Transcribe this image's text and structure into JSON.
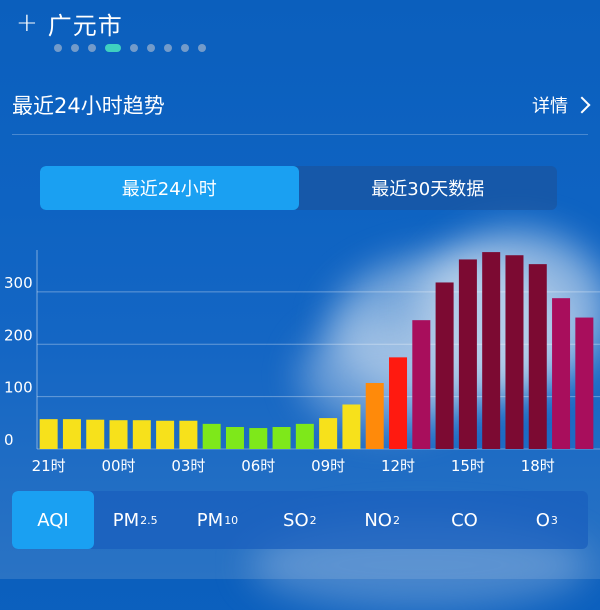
{
  "header": {
    "city": "广元市"
  },
  "pager": {
    "count": 9,
    "active_index": 3
  },
  "section": {
    "title": "最近24小时趋势",
    "detail_label": "详情"
  },
  "range_toggle": {
    "options": [
      "最近24小时",
      "最近30天数据"
    ],
    "active_index": 0
  },
  "pollutant_tabs": {
    "active_index": 0,
    "items": [
      {
        "main": "AQI",
        "sub": ""
      },
      {
        "main": "PM",
        "sub": "2.5"
      },
      {
        "main": "PM",
        "sub": "10"
      },
      {
        "main": "SO",
        "sub": "2"
      },
      {
        "main": "NO",
        "sub": "2"
      },
      {
        "main": "CO",
        "sub": ""
      },
      {
        "main": "O",
        "sub": "3"
      }
    ]
  },
  "chart_data": {
    "type": "bar",
    "ylim": [
      0,
      380
    ],
    "y_ticks": [
      0,
      100,
      200,
      300
    ],
    "x_tick_labels": [
      "21时",
      "00时",
      "03时",
      "06时",
      "09时",
      "12时",
      "15时",
      "18时"
    ],
    "x_tick_indices": [
      0,
      3,
      6,
      9,
      12,
      15,
      18,
      21
    ],
    "values": [
      57,
      57,
      56,
      55,
      55,
      54,
      54,
      48,
      42,
      40,
      42,
      48,
      59,
      85,
      126,
      175,
      246,
      318,
      362,
      376,
      370,
      353,
      288,
      251
    ],
    "colors": [
      "#f7e11b",
      "#f7e11b",
      "#f7e11b",
      "#f7e11b",
      "#f7e11b",
      "#f7e11b",
      "#f7e11b",
      "#7ee81a",
      "#7ee81a",
      "#7ee81a",
      "#7ee81a",
      "#7ee81a",
      "#f7e11b",
      "#f7e11b",
      "#ff8a0a",
      "#ff1a10",
      "#a80e5c",
      "#7c0a32",
      "#7c0a32",
      "#7c0a32",
      "#7c0a32",
      "#7c0a32",
      "#a80e5c",
      "#a80e5c"
    ]
  }
}
